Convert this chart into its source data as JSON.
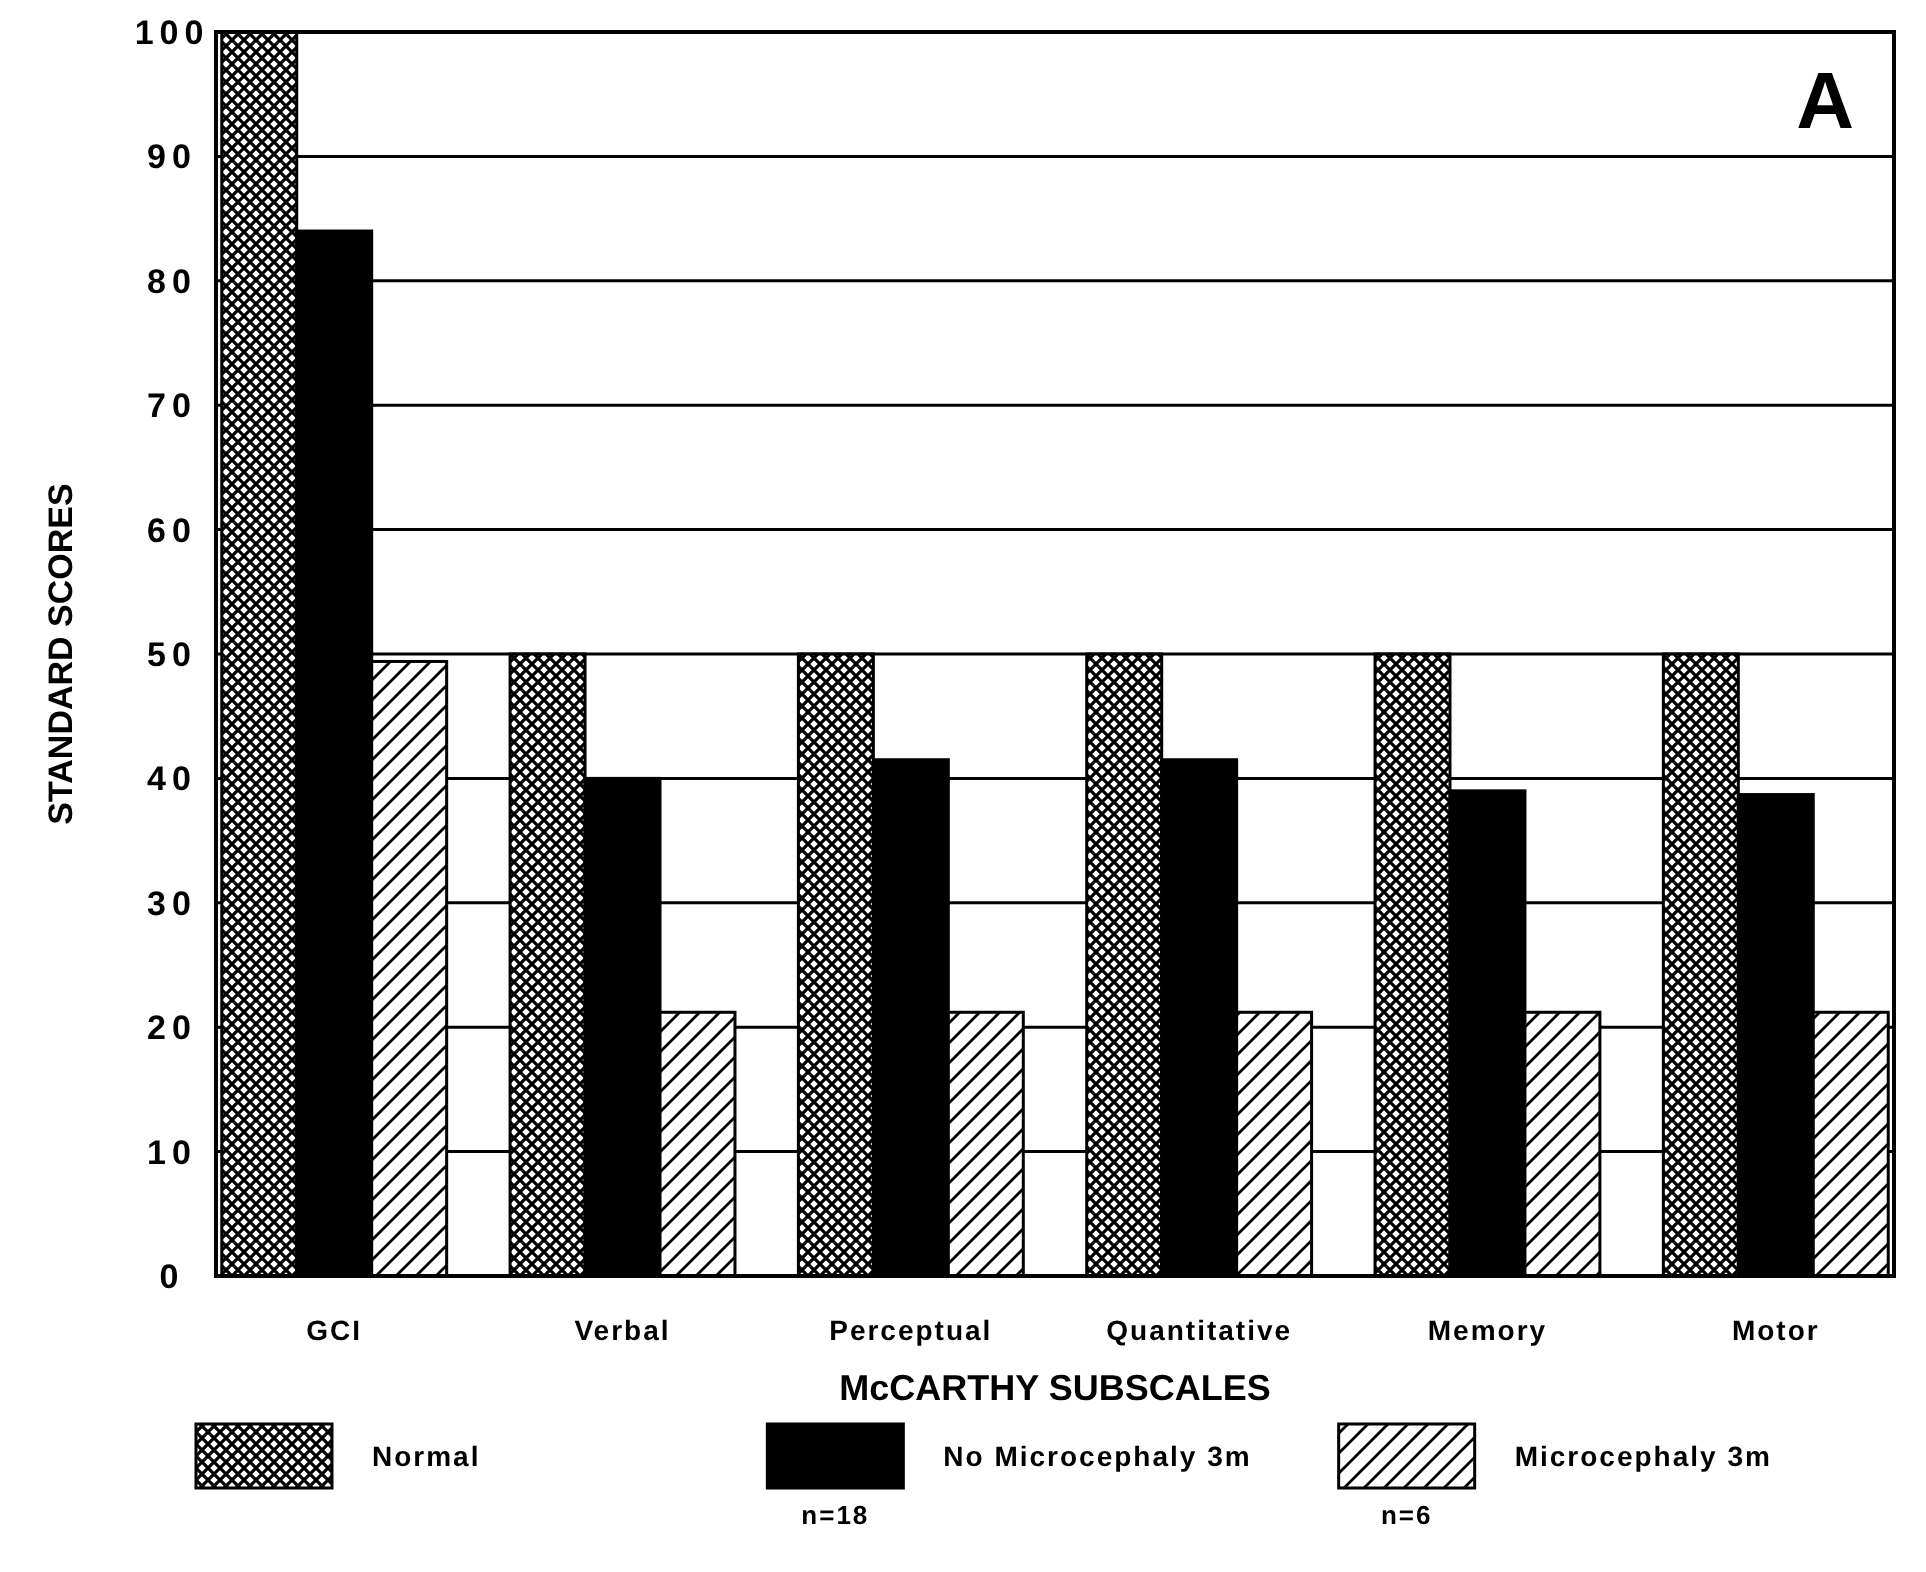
{
  "chart_data": {
    "type": "bar",
    "xlabel": "McCARTHY SUBSCALES",
    "ylabel": "STANDARD SCORES",
    "categories": [
      "GCI",
      "Verbal",
      "Perceptual",
      "Quantitative",
      "Memory",
      "Motor"
    ],
    "series": [
      {
        "name": "Normal",
        "color": "#000000",
        "values": [
          100,
          50,
          50,
          50,
          50,
          50
        ]
      },
      {
        "name": "No Microcephaly 3m",
        "color": "#000000",
        "values": [
          84,
          40,
          41.5,
          41.5,
          39,
          38.7
        ]
      },
      {
        "name": "Microcephaly 3m",
        "color": "#000000",
        "values": [
          49.4,
          21.2,
          21.2,
          21.2,
          21.2,
          21.2
        ]
      }
    ],
    "ylim": [
      0,
      100
    ],
    "yticks": [
      0,
      10,
      20,
      30,
      40,
      50,
      60,
      70,
      80,
      90,
      100
    ],
    "grid": "y",
    "legend": "bottom",
    "annotations": [
      "A",
      "n=18",
      "n=6"
    ]
  }
}
